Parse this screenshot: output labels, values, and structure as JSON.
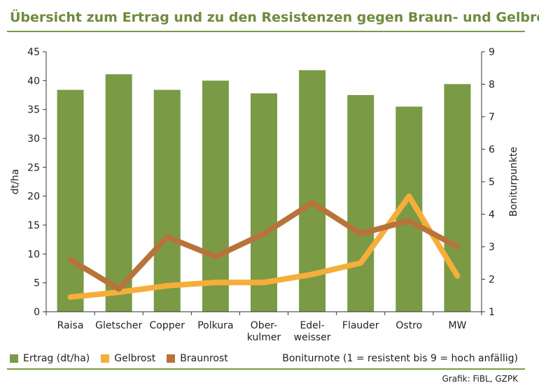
{
  "header": {
    "title": "Übersicht zum Ertrag und zu den Resistenzen gegen Braun- und Gelbrost"
  },
  "colors": {
    "title": "#6e8b3d",
    "rule": "#7a9a45",
    "ertrag": "#7a9a45",
    "gelbrost": "#f6ae3a",
    "braunrost": "#b8733b",
    "axis": "#333333"
  },
  "chart_data": {
    "type": "bar",
    "categories": [
      "Raisa",
      "Gletscher",
      "Copper",
      "Polkura",
      "Ober-\nkulmer",
      "Edel-\nweisser",
      "Flauder",
      "Ostro",
      "MW"
    ],
    "series": [
      {
        "name": "Ertrag (dt/ha)",
        "kind": "bar",
        "axis": "left",
        "values": [
          38.4,
          41.1,
          38.4,
          40.0,
          37.8,
          41.8,
          37.5,
          35.5,
          39.4
        ]
      },
      {
        "name": "Gelbrost",
        "kind": "line",
        "axis": "right",
        "values": [
          1.45,
          1.6,
          1.8,
          1.9,
          1.9,
          2.15,
          2.5,
          4.55,
          2.1
        ]
      },
      {
        "name": "Braunrost",
        "kind": "line",
        "axis": "right",
        "values": [
          2.6,
          1.7,
          3.3,
          2.7,
          3.4,
          4.35,
          3.4,
          3.8,
          3.0
        ]
      }
    ],
    "ylabel": "dt/ha",
    "ylim": [
      0,
      45
    ],
    "yticks": [
      0,
      5,
      10,
      15,
      20,
      25,
      30,
      35,
      40,
      45
    ],
    "y2label": "Boniturpunkte",
    "y2lim": [
      1,
      9
    ],
    "y2ticks": [
      1,
      2,
      3,
      4,
      5,
      6,
      7,
      8,
      9
    ],
    "grid": false,
    "legend": "bottom-left",
    "note": "Boniturnote (1 = resistent bis 9 = hoch anfällig)",
    "source": "Grafik: FiBL, GZPK"
  }
}
